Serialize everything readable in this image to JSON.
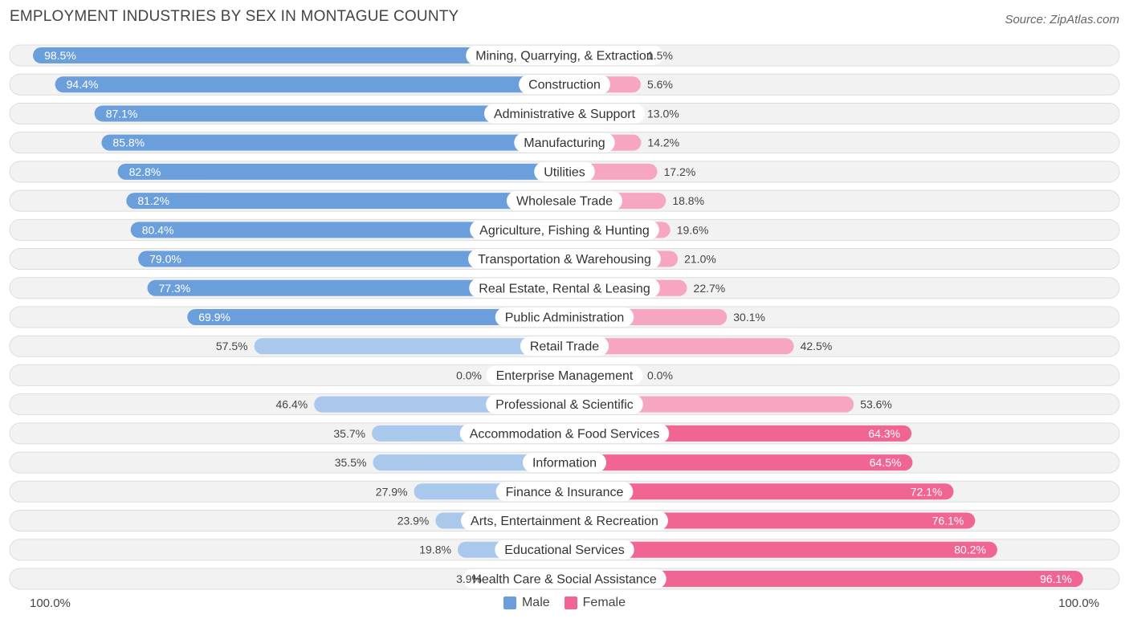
{
  "header": {
    "title": "EMPLOYMENT INDUSTRIES BY SEX IN MONTAGUE COUNTY",
    "source": "Source: ZipAtlas.com"
  },
  "axis": {
    "left_label": "100.0%",
    "right_label": "100.0%"
  },
  "legend": {
    "male_label": "Male",
    "female_label": "Female"
  },
  "colors": {
    "male_strong": "#6a9fdc",
    "male_light": "#a9c8ec",
    "female_strong": "#f06592",
    "female_light": "#f6a6c1",
    "row_bg": "#f2f2f2",
    "row_border": "#dddddd"
  },
  "chart_data": {
    "type": "bar",
    "title": "EMPLOYMENT INDUSTRIES BY SEX IN MONTAGUE COUNTY",
    "orientation": "horizontal-diverging",
    "xlim": [
      0,
      100
    ],
    "categories": [
      "Mining, Quarrying, & Extraction",
      "Construction",
      "Administrative & Support",
      "Manufacturing",
      "Utilities",
      "Wholesale Trade",
      "Agriculture, Fishing & Hunting",
      "Transportation & Warehousing",
      "Real Estate, Rental & Leasing",
      "Public Administration",
      "Retail Trade",
      "Enterprise Management",
      "Professional & Scientific",
      "Accommodation & Food Services",
      "Information",
      "Finance & Insurance",
      "Arts, Entertainment & Recreation",
      "Educational Services",
      "Health Care & Social Assistance"
    ],
    "series": [
      {
        "name": "Male",
        "values": [
          98.5,
          94.4,
          87.1,
          85.8,
          82.8,
          81.2,
          80.4,
          79.0,
          77.3,
          69.9,
          57.5,
          0.0,
          46.4,
          35.7,
          35.5,
          27.9,
          23.9,
          19.8,
          3.9
        ],
        "labels": [
          "98.5%",
          "94.4%",
          "87.1%",
          "85.8%",
          "82.8%",
          "81.2%",
          "80.4%",
          "79.0%",
          "77.3%",
          "69.9%",
          "57.5%",
          "0.0%",
          "46.4%",
          "35.7%",
          "35.5%",
          "27.9%",
          "23.9%",
          "19.8%",
          "3.9%"
        ]
      },
      {
        "name": "Female",
        "values": [
          1.5,
          5.6,
          13.0,
          14.2,
          17.2,
          18.8,
          19.6,
          21.0,
          22.7,
          30.1,
          42.5,
          0.0,
          53.6,
          64.3,
          64.5,
          72.1,
          76.1,
          80.2,
          96.1
        ],
        "labels": [
          "1.5%",
          "5.6%",
          "13.0%",
          "14.2%",
          "17.2%",
          "18.8%",
          "19.6%",
          "21.0%",
          "22.7%",
          "30.1%",
          "42.5%",
          "0.0%",
          "53.6%",
          "64.3%",
          "64.5%",
          "72.1%",
          "76.1%",
          "80.2%",
          "96.1%"
        ]
      }
    ],
    "legend": [
      "Male",
      "Female"
    ]
  }
}
